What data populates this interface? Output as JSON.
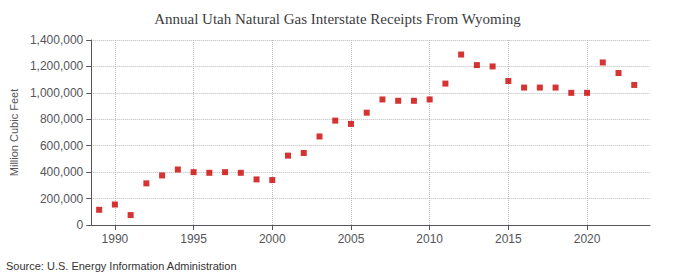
{
  "chart_data": {
    "type": "scatter",
    "title": "Annual Utah Natural Gas Interstate Receipts From Wyoming",
    "ylabel": "Million Cubic Feet",
    "annotations": [
      "Source: U.S. Energy Information Administration"
    ],
    "x": [
      1989,
      1990,
      1991,
      1992,
      1993,
      1994,
      1995,
      1996,
      1997,
      1998,
      1999,
      2000,
      2001,
      2002,
      2003,
      2004,
      2005,
      2006,
      2007,
      2008,
      2009,
      2010,
      2011,
      2012,
      2013,
      2014,
      2015,
      2016,
      2017,
      2018,
      2019,
      2020,
      2021,
      2022,
      2023
    ],
    "values": [
      115000,
      155000,
      75000,
      315000,
      375000,
      420000,
      400000,
      395000,
      400000,
      395000,
      345000,
      340000,
      525000,
      545000,
      670000,
      790000,
      765000,
      850000,
      950000,
      940000,
      940000,
      950000,
      1070000,
      1290000,
      1210000,
      1200000,
      1090000,
      1040000,
      1040000,
      1040000,
      1000000,
      1000000,
      1230000,
      1150000,
      1060000
    ],
    "color": "#cc0000",
    "marker": "square",
    "xlim": [
      1988.5,
      2024
    ],
    "xticks": [
      1990,
      1995,
      2000,
      2005,
      2010,
      2015,
      2020
    ],
    "ylim": [
      0,
      1400000
    ],
    "yticks": [
      0,
      {
        "value": 200000,
        "label": "200,000"
      },
      {
        "value": 400000,
        "label": "400,000"
      },
      {
        "value": 600000,
        "label": "600,000"
      },
      {
        "value": 800000,
        "label": "800,000"
      },
      {
        "value": 1000000,
        "label": "1,000,000"
      },
      {
        "value": 1200000,
        "label": "1,200,000"
      },
      {
        "value": 1400000,
        "label": "1,400,000"
      }
    ],
    "grid": true
  }
}
